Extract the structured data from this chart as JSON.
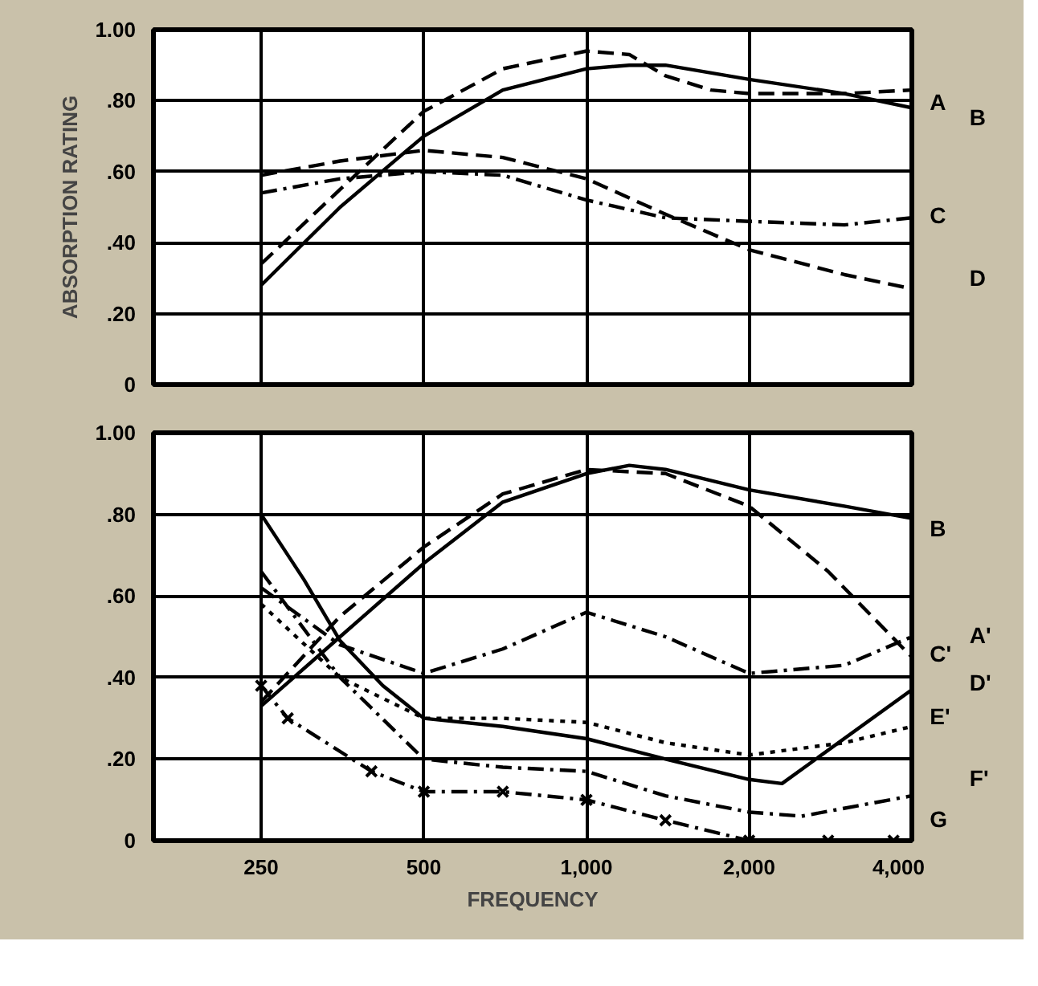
{
  "chart_data": [
    {
      "type": "line",
      "ylabel": "ABSORPTION RATING",
      "log": "x",
      "grid": true,
      "tick_labels": "y",
      "xlim": [
        158,
        4000
      ],
      "xticks": [
        {
          "value": 250,
          "label": null
        },
        {
          "value": 500,
          "label": null
        },
        {
          "value": 1000,
          "label": null
        },
        {
          "value": 2000,
          "label": null
        },
        {
          "value": 4000,
          "label": null
        }
      ],
      "ylim": [
        0,
        1.0
      ],
      "yticks": [
        0,
        {
          "value": 0.2,
          "label": ".20"
        },
        {
          "value": 0.4,
          "label": ".40"
        },
        {
          "value": 0.6,
          "label": ".60"
        },
        {
          "value": 0.8,
          "label": ".80"
        },
        {
          "value": 1.0,
          "label": "1.00"
        }
      ],
      "series": [
        {
          "name": "A",
          "color": "#000000",
          "line_style": "dashed",
          "x": [
            250,
            350,
            500,
            700,
            1000,
            1200,
            1400,
            1700,
            2000,
            3000,
            4000
          ],
          "values": [
            0.34,
            0.55,
            0.77,
            0.89,
            0.94,
            0.93,
            0.87,
            0.83,
            0.82,
            0.82,
            0.83
          ]
        },
        {
          "name": "B",
          "color": "#000000",
          "line_style": "solid",
          "x": [
            250,
            350,
            500,
            700,
            1000,
            1200,
            1400,
            2000,
            3000,
            4000
          ],
          "values": [
            0.28,
            0.5,
            0.7,
            0.83,
            0.89,
            0.9,
            0.9,
            0.86,
            0.82,
            0.78
          ]
        },
        {
          "name": "C",
          "color": "#000000",
          "line_style": "dashdot",
          "x": [
            250,
            350,
            500,
            700,
            1000,
            1400,
            2000,
            3000,
            4000
          ],
          "values": [
            0.54,
            0.58,
            0.6,
            0.59,
            0.52,
            0.47,
            0.46,
            0.45,
            0.47
          ]
        },
        {
          "name": "D",
          "color": "#000000",
          "line_style": "dashed",
          "x": [
            250,
            350,
            500,
            700,
            1000,
            1400,
            2000,
            3000,
            4000
          ],
          "values": [
            0.59,
            0.63,
            0.66,
            0.64,
            0.58,
            0.48,
            0.38,
            0.31,
            0.27
          ]
        }
      ]
    },
    {
      "type": "line",
      "xlabel": "FREQUENCY",
      "log": "x",
      "grid": true,
      "xlim": [
        158,
        4000
      ],
      "xticks": [
        250,
        500,
        {
          "value": 1000,
          "label": "1,000"
        },
        {
          "value": 2000,
          "label": "2,000"
        },
        {
          "value": 4000,
          "label": "4,000"
        }
      ],
      "ylim": [
        0,
        1.0
      ],
      "yticks": [
        0,
        {
          "value": 0.2,
          "label": ".20"
        },
        {
          "value": 0.4,
          "label": ".40"
        },
        {
          "value": 0.6,
          "label": ".60"
        },
        {
          "value": 0.8,
          "label": ".80"
        },
        {
          "value": 1.0,
          "label": "1.00"
        }
      ],
      "series": [
        {
          "name": "B",
          "color": "#000000",
          "line_style": "solid",
          "x": [
            250,
            350,
            500,
            700,
            1000,
            1200,
            1400,
            2000,
            3000,
            4000
          ],
          "values": [
            0.33,
            0.5,
            0.68,
            0.83,
            0.9,
            0.92,
            0.91,
            0.86,
            0.82,
            0.79
          ]
        },
        {
          "name": "A'",
          "color": "#000000",
          "line_style": "dashdot",
          "x": [
            250,
            350,
            500,
            700,
            1000,
            1400,
            2000,
            3000,
            4000
          ],
          "values": [
            0.62,
            0.48,
            0.41,
            0.47,
            0.56,
            0.5,
            0.41,
            0.43,
            0.5
          ]
        },
        {
          "name": "C'",
          "color": "#000000",
          "line_style": "dashed",
          "x": [
            250,
            350,
            500,
            700,
            1000,
            1400,
            2000,
            2800,
            4000
          ],
          "values": [
            0.34,
            0.55,
            0.72,
            0.85,
            0.91,
            0.9,
            0.82,
            0.66,
            0.45
          ]
        },
        {
          "name": "D'",
          "color": "#000000",
          "line_style": "solid",
          "x": [
            250,
            300,
            350,
            420,
            500,
            700,
            1000,
            1400,
            2000,
            2300,
            4000
          ],
          "values": [
            0.8,
            0.64,
            0.49,
            0.38,
            0.3,
            0.28,
            0.25,
            0.2,
            0.15,
            0.14,
            0.37
          ]
        },
        {
          "name": "E'",
          "color": "#000000",
          "line_style": "dotted",
          "x": [
            250,
            350,
            500,
            700,
            1000,
            1400,
            2000,
            3000,
            4000
          ],
          "values": [
            0.58,
            0.4,
            0.3,
            0.3,
            0.29,
            0.24,
            0.21,
            0.24,
            0.28
          ]
        },
        {
          "name": "F'",
          "color": "#000000",
          "line_style": "dashdot",
          "x": [
            250,
            350,
            500,
            700,
            1000,
            1400,
            2000,
            2500,
            4000
          ],
          "values": [
            0.66,
            0.4,
            0.2,
            0.18,
            0.17,
            0.11,
            0.07,
            0.06,
            0.11
          ]
        },
        {
          "name": "G",
          "color": "#000000",
          "line_style": "dashdot",
          "marker": "cross",
          "x": [
            250,
            280,
            400,
            500,
            700,
            1000,
            1400,
            2000,
            2800,
            3700
          ],
          "values": [
            0.38,
            0.3,
            0.17,
            0.12,
            0.12,
            0.1,
            0.05,
            0.0,
            0.0,
            0.0
          ]
        }
      ]
    }
  ]
}
